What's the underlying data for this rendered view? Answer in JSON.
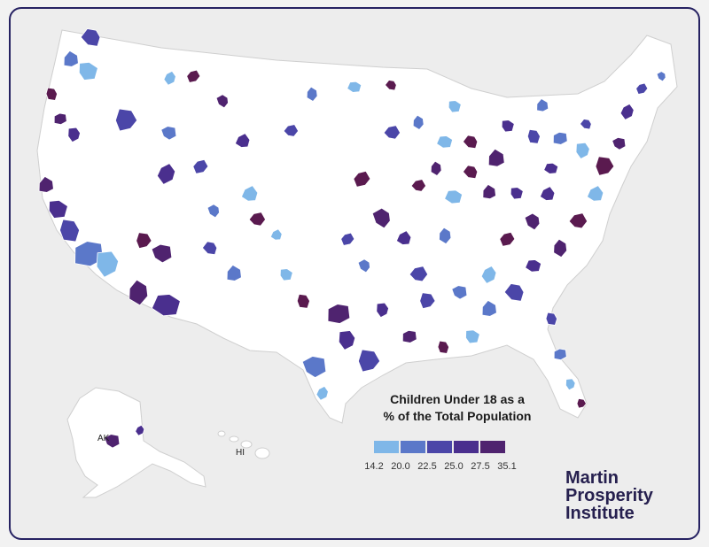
{
  "legend": {
    "title_line1": "Children Under 18 as a",
    "title_line2": "% of the Total Population",
    "ticks": [
      "14.2",
      "20.0",
      "22.5",
      "25.0",
      "27.5",
      "35.1"
    ],
    "colors": [
      "#7fb7e8",
      "#5b78c9",
      "#4b46a8",
      "#4a2f8e",
      "#4f236f",
      "#5a1a4f"
    ]
  },
  "labels": {
    "alaska": "AK",
    "hawaii": "HI"
  },
  "logo": {
    "line1": "Martin",
    "line2": "Prosperity",
    "line3": "Institute"
  }
}
